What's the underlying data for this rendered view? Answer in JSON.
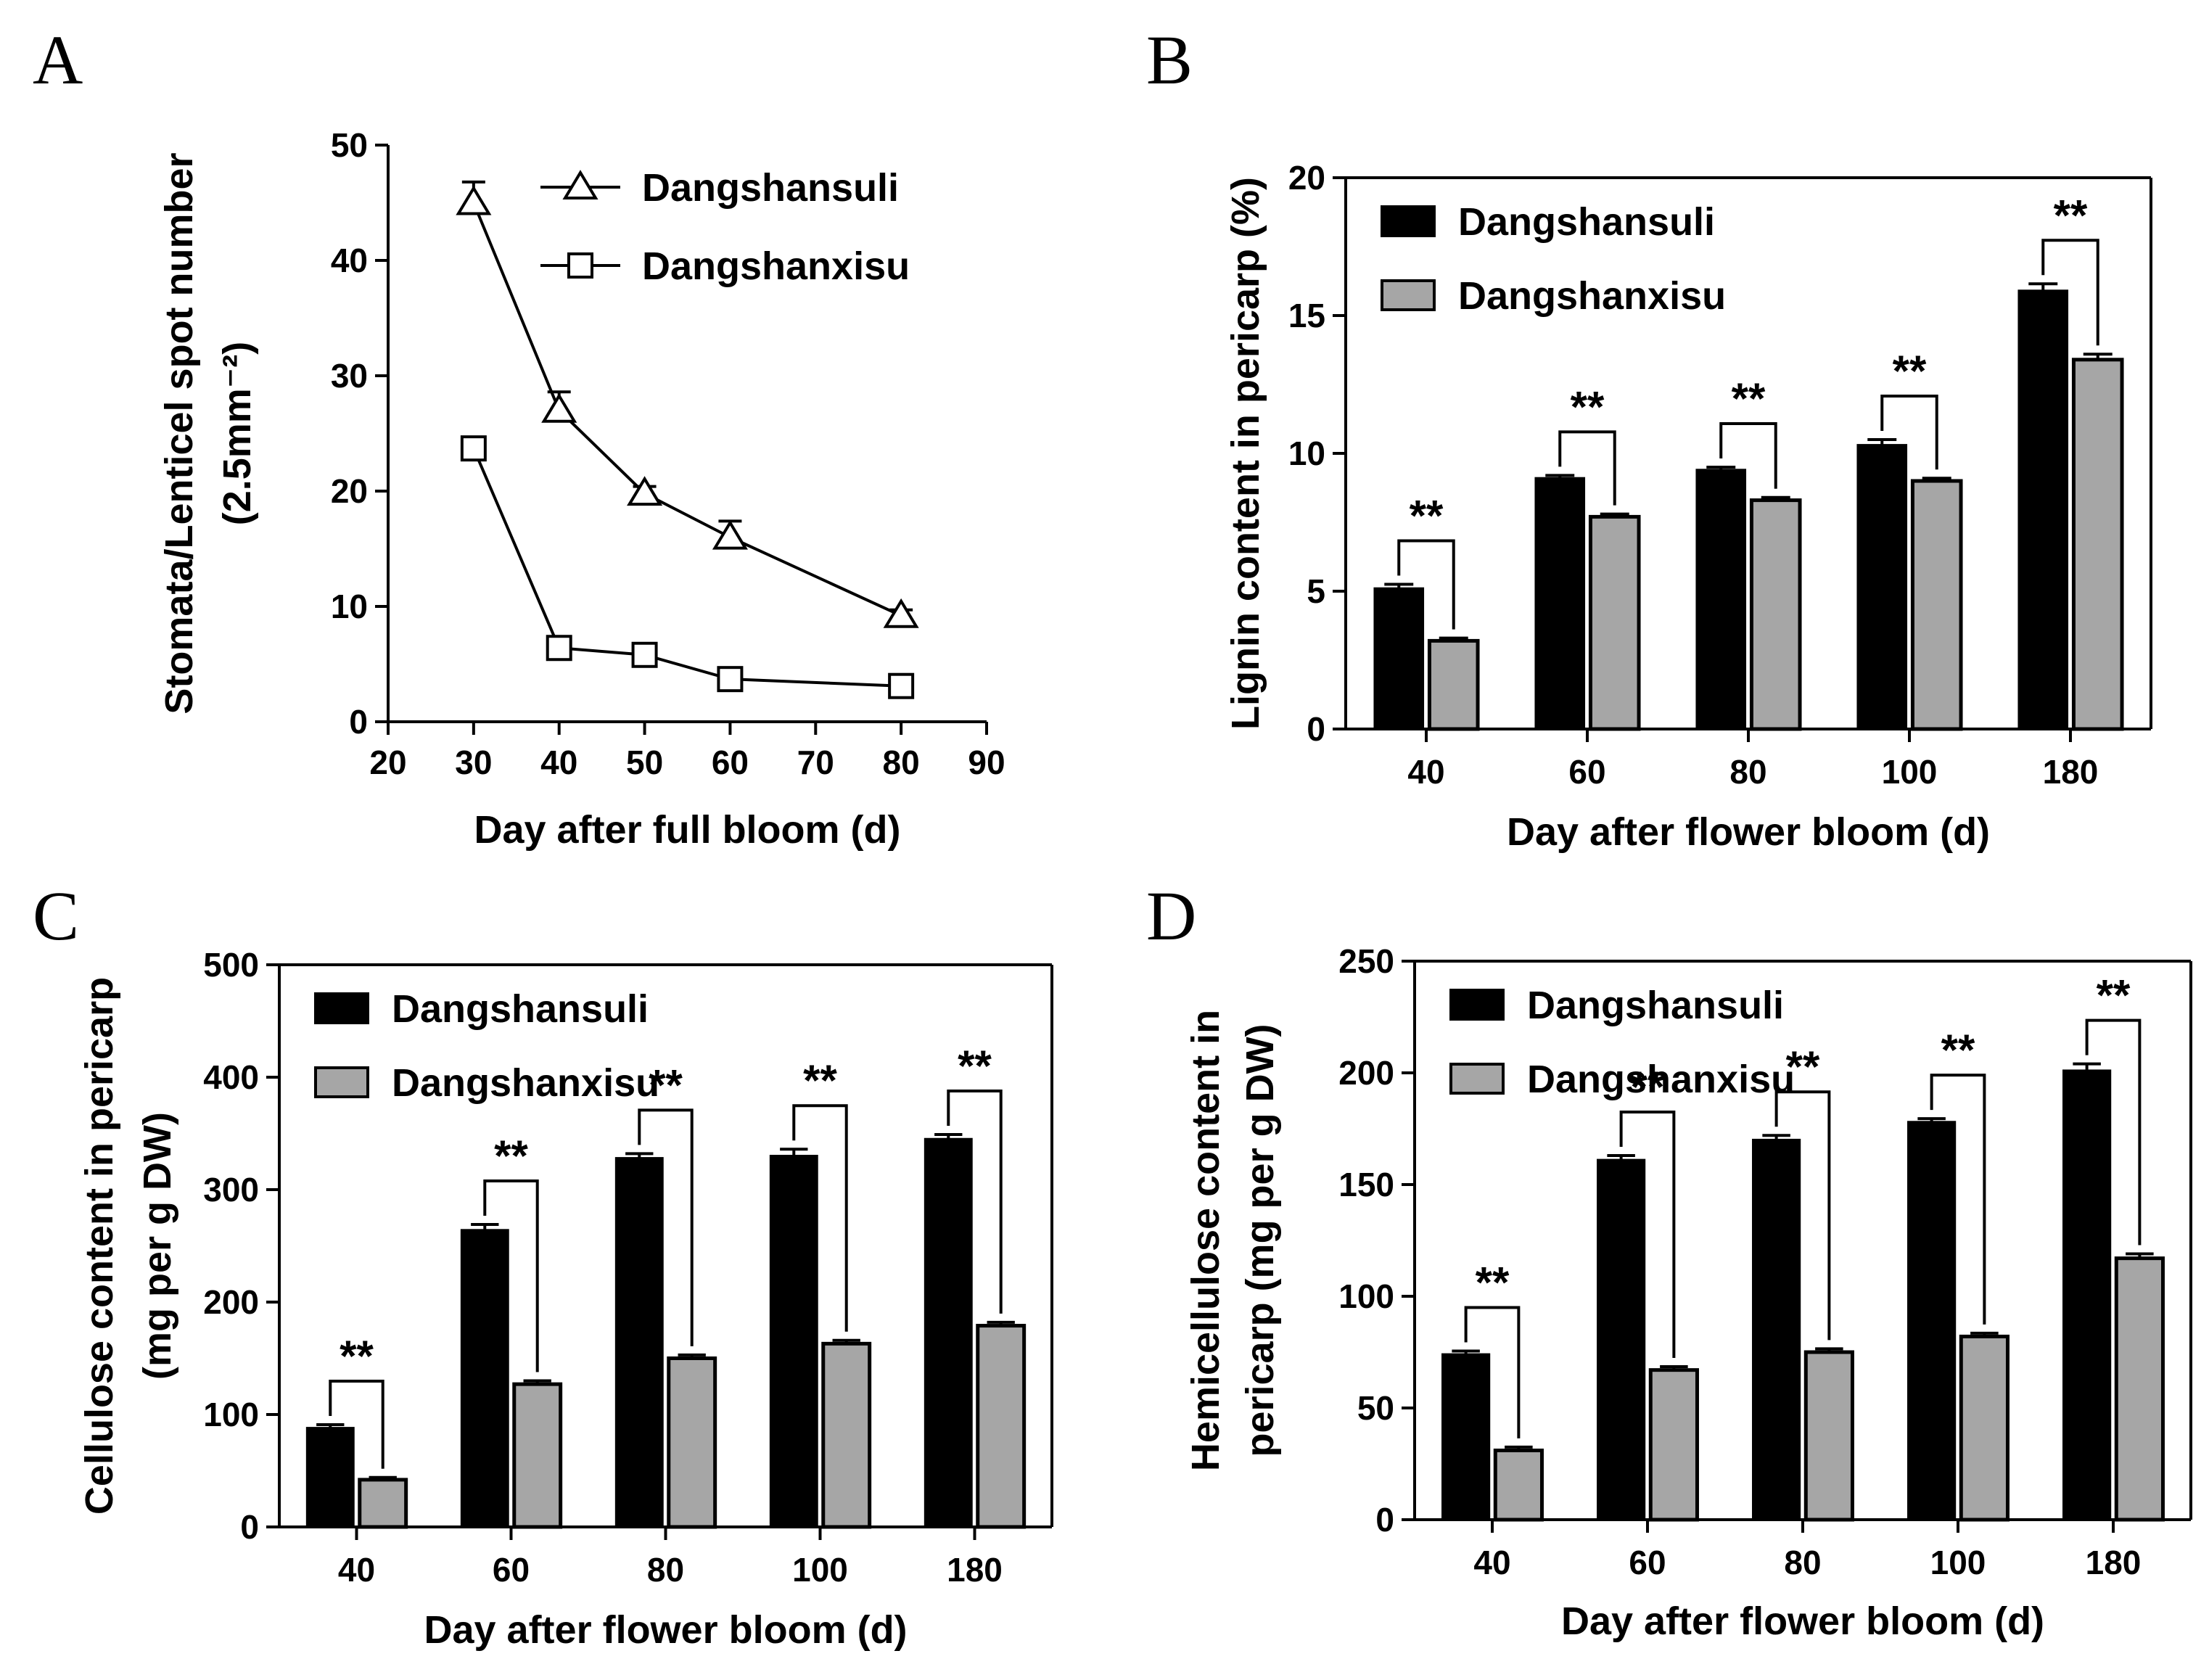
{
  "figure": {
    "panels": [
      "A",
      "B",
      "C",
      "D"
    ]
  },
  "colors": {
    "series1": "#000000",
    "series2": "#a6a6a6",
    "axis": "#000000"
  },
  "chart_data": [
    {
      "panel": "A",
      "type": "line",
      "title": "",
      "xlabel": "Day after full bloom (d)",
      "ylabel": "Stomata/Lenticel spot number",
      "ylabel2": "(2.5mm⁻²)",
      "xlim": [
        20,
        90
      ],
      "ylim": [
        0,
        50
      ],
      "xticks": [
        "20",
        "30",
        "40",
        "50",
        "60",
        "70",
        "80",
        "90"
      ],
      "yticks": [
        "0",
        "10",
        "20",
        "30",
        "40",
        "50"
      ],
      "legend_position": "top-right",
      "series": [
        {
          "name": "Dangshansuli",
          "marker": "triangle",
          "x": [
            30,
            40,
            50,
            60,
            80
          ],
          "values": [
            45.0,
            27.0,
            19.8,
            16.0,
            9.2
          ],
          "errors": [
            1.8,
            1.6,
            0.6,
            1.4,
            0.5
          ]
        },
        {
          "name": "Dangshanxisu",
          "marker": "square",
          "x": [
            30,
            40,
            50,
            60,
            80
          ],
          "values": [
            23.7,
            6.4,
            5.8,
            3.7,
            3.1
          ],
          "errors": [
            0.5,
            0.4,
            0.3,
            0.3,
            0.2
          ]
        }
      ]
    },
    {
      "panel": "B",
      "type": "bar",
      "title": "",
      "xlabel": "Day after flower bloom (d)",
      "ylabel": "Lignin content in pericarp (%)",
      "ylabel2": "",
      "categories": [
        "40",
        "60",
        "80",
        "100",
        "180"
      ],
      "ylim": [
        0,
        20
      ],
      "yticks": [
        "0",
        "5",
        "10",
        "15",
        "20"
      ],
      "legend_position": "top-left",
      "significance": "**",
      "series": [
        {
          "name": "Dangshansuli",
          "values": [
            5.1,
            9.1,
            9.4,
            10.3,
            15.9
          ],
          "errors": [
            0.15,
            0.1,
            0.1,
            0.2,
            0.25
          ]
        },
        {
          "name": "Dangshanxisu",
          "values": [
            3.2,
            7.7,
            8.3,
            9.0,
            13.4
          ],
          "errors": [
            0.1,
            0.1,
            0.1,
            0.1,
            0.2
          ]
        }
      ]
    },
    {
      "panel": "C",
      "type": "bar",
      "title": "",
      "xlabel": "Day after flower bloom (d)",
      "ylabel": "Cellulose content in pericarp",
      "ylabel2": "(mg per g DW)",
      "categories": [
        "40",
        "60",
        "80",
        "100",
        "180"
      ],
      "ylim": [
        0,
        500
      ],
      "yticks": [
        "0",
        "100",
        "200",
        "300",
        "400",
        "500"
      ],
      "legend_position": "top-left",
      "significance": "**",
      "series": [
        {
          "name": "Dangshansuli",
          "values": [
            88,
            264,
            328,
            330,
            345
          ],
          "errors": [
            3,
            5,
            4,
            6,
            4
          ]
        },
        {
          "name": "Dangshanxisu",
          "values": [
            42,
            127,
            150,
            163,
            179
          ],
          "errors": [
            2,
            3,
            3,
            3,
            3
          ]
        }
      ]
    },
    {
      "panel": "D",
      "type": "bar",
      "title": "",
      "xlabel": "Day after flower bloom (d)",
      "ylabel": "Hemicellulose content in",
      "ylabel2": "pericarp (mg per g DW)",
      "categories": [
        "40",
        "60",
        "80",
        "100",
        "180"
      ],
      "ylim": [
        0,
        250
      ],
      "yticks": [
        "0",
        "50",
        "100",
        "150",
        "200",
        "250"
      ],
      "legend_position": "top-left",
      "significance": "**",
      "series": [
        {
          "name": "Dangshansuli",
          "values": [
            74,
            161,
            170,
            178,
            201
          ],
          "errors": [
            1.5,
            2,
            2,
            1.5,
            3
          ]
        },
        {
          "name": "Dangshanxisu",
          "values": [
            31,
            67,
            75,
            82,
            117
          ],
          "errors": [
            1.5,
            1.5,
            1.5,
            1.5,
            2
          ]
        }
      ]
    }
  ]
}
